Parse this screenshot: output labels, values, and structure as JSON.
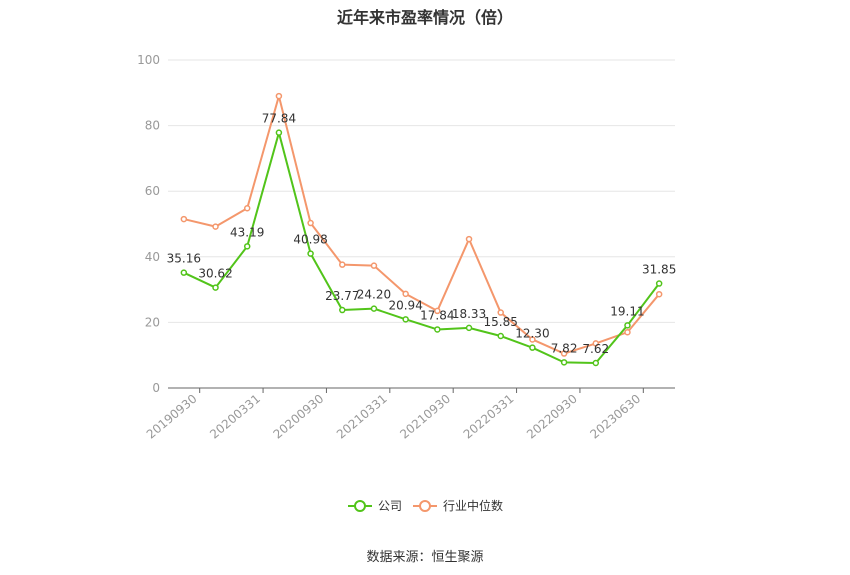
{
  "title": "近年来市盈率情况（倍）",
  "source": "数据来源：恒生聚源",
  "chart_data": {
    "type": "line",
    "ylim": [
      0,
      100
    ],
    "yticks": [
      0,
      20,
      40,
      60,
      80,
      100
    ],
    "x_tick_labels": [
      "20190930",
      "20200331",
      "20200930",
      "20210331",
      "20210930",
      "20220331",
      "20220930",
      "20230630"
    ],
    "series": [
      {
        "name": "公司",
        "color": "#52c41a",
        "values": [
          35.16,
          30.62,
          43.19,
          77.84,
          40.98,
          23.77,
          24.2,
          20.94,
          17.84,
          18.33,
          15.85,
          12.3,
          7.82,
          7.62,
          19.11,
          31.85
        ],
        "labels": [
          "35.16",
          "30.62",
          "43.19",
          "77.84",
          "40.98",
          "23.77",
          "24.20",
          "20.94",
          "17.84",
          "18.33",
          "15.85",
          "12.30",
          "7.82",
          "7.62",
          "19.11",
          "31.85"
        ]
      },
      {
        "name": "行业中位数",
        "color": "#f4976c",
        "values": [
          51.5,
          49.2,
          54.8,
          89.0,
          50.3,
          37.6,
          37.3,
          28.7,
          23.5,
          45.4,
          23.0,
          14.8,
          10.5,
          13.6,
          17.0,
          28.6
        ]
      }
    ]
  }
}
